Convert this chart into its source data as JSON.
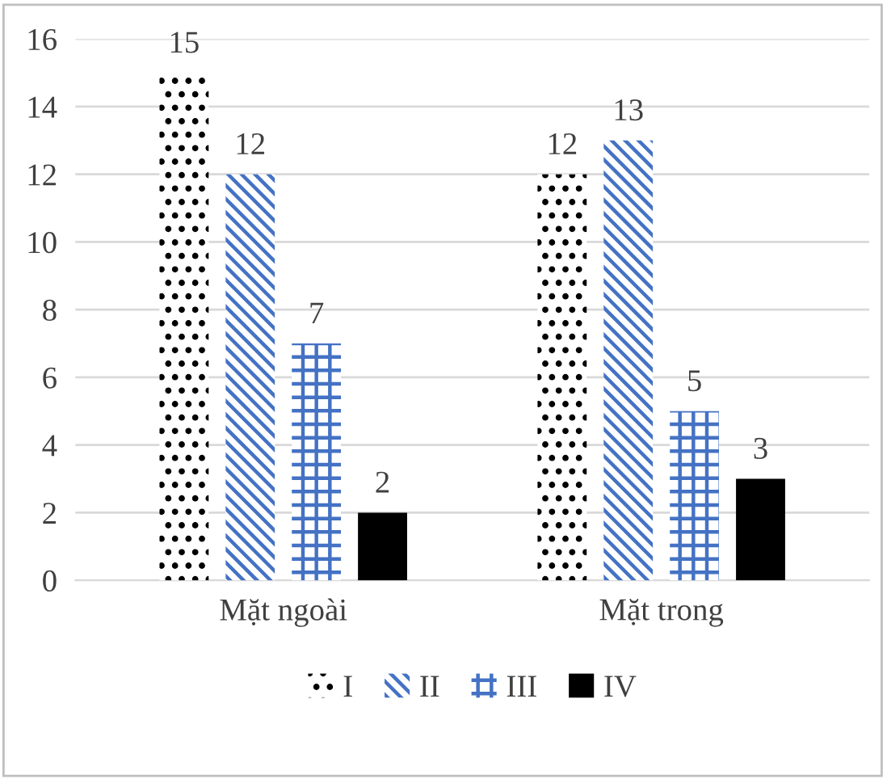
{
  "chart_data": {
    "type": "bar",
    "categories": [
      "Mặt ngoài",
      "Mặt trong"
    ],
    "series": [
      {
        "name": "I",
        "color": "#000000",
        "values": [
          15,
          12
        ]
      },
      {
        "name": "II",
        "color": "#4472c4",
        "values": [
          12,
          13
        ]
      },
      {
        "name": "III",
        "color": "#4472c4",
        "values": [
          7,
          5
        ]
      },
      {
        "name": "IV",
        "color": "#000000",
        "values": [
          2,
          3
        ]
      }
    ],
    "ylim": [
      0,
      16
    ],
    "yticks": [
      0,
      2,
      4,
      6,
      8,
      10,
      12,
      14,
      16
    ],
    "grid": "y",
    "legend": "bottom",
    "data_labels": true
  }
}
